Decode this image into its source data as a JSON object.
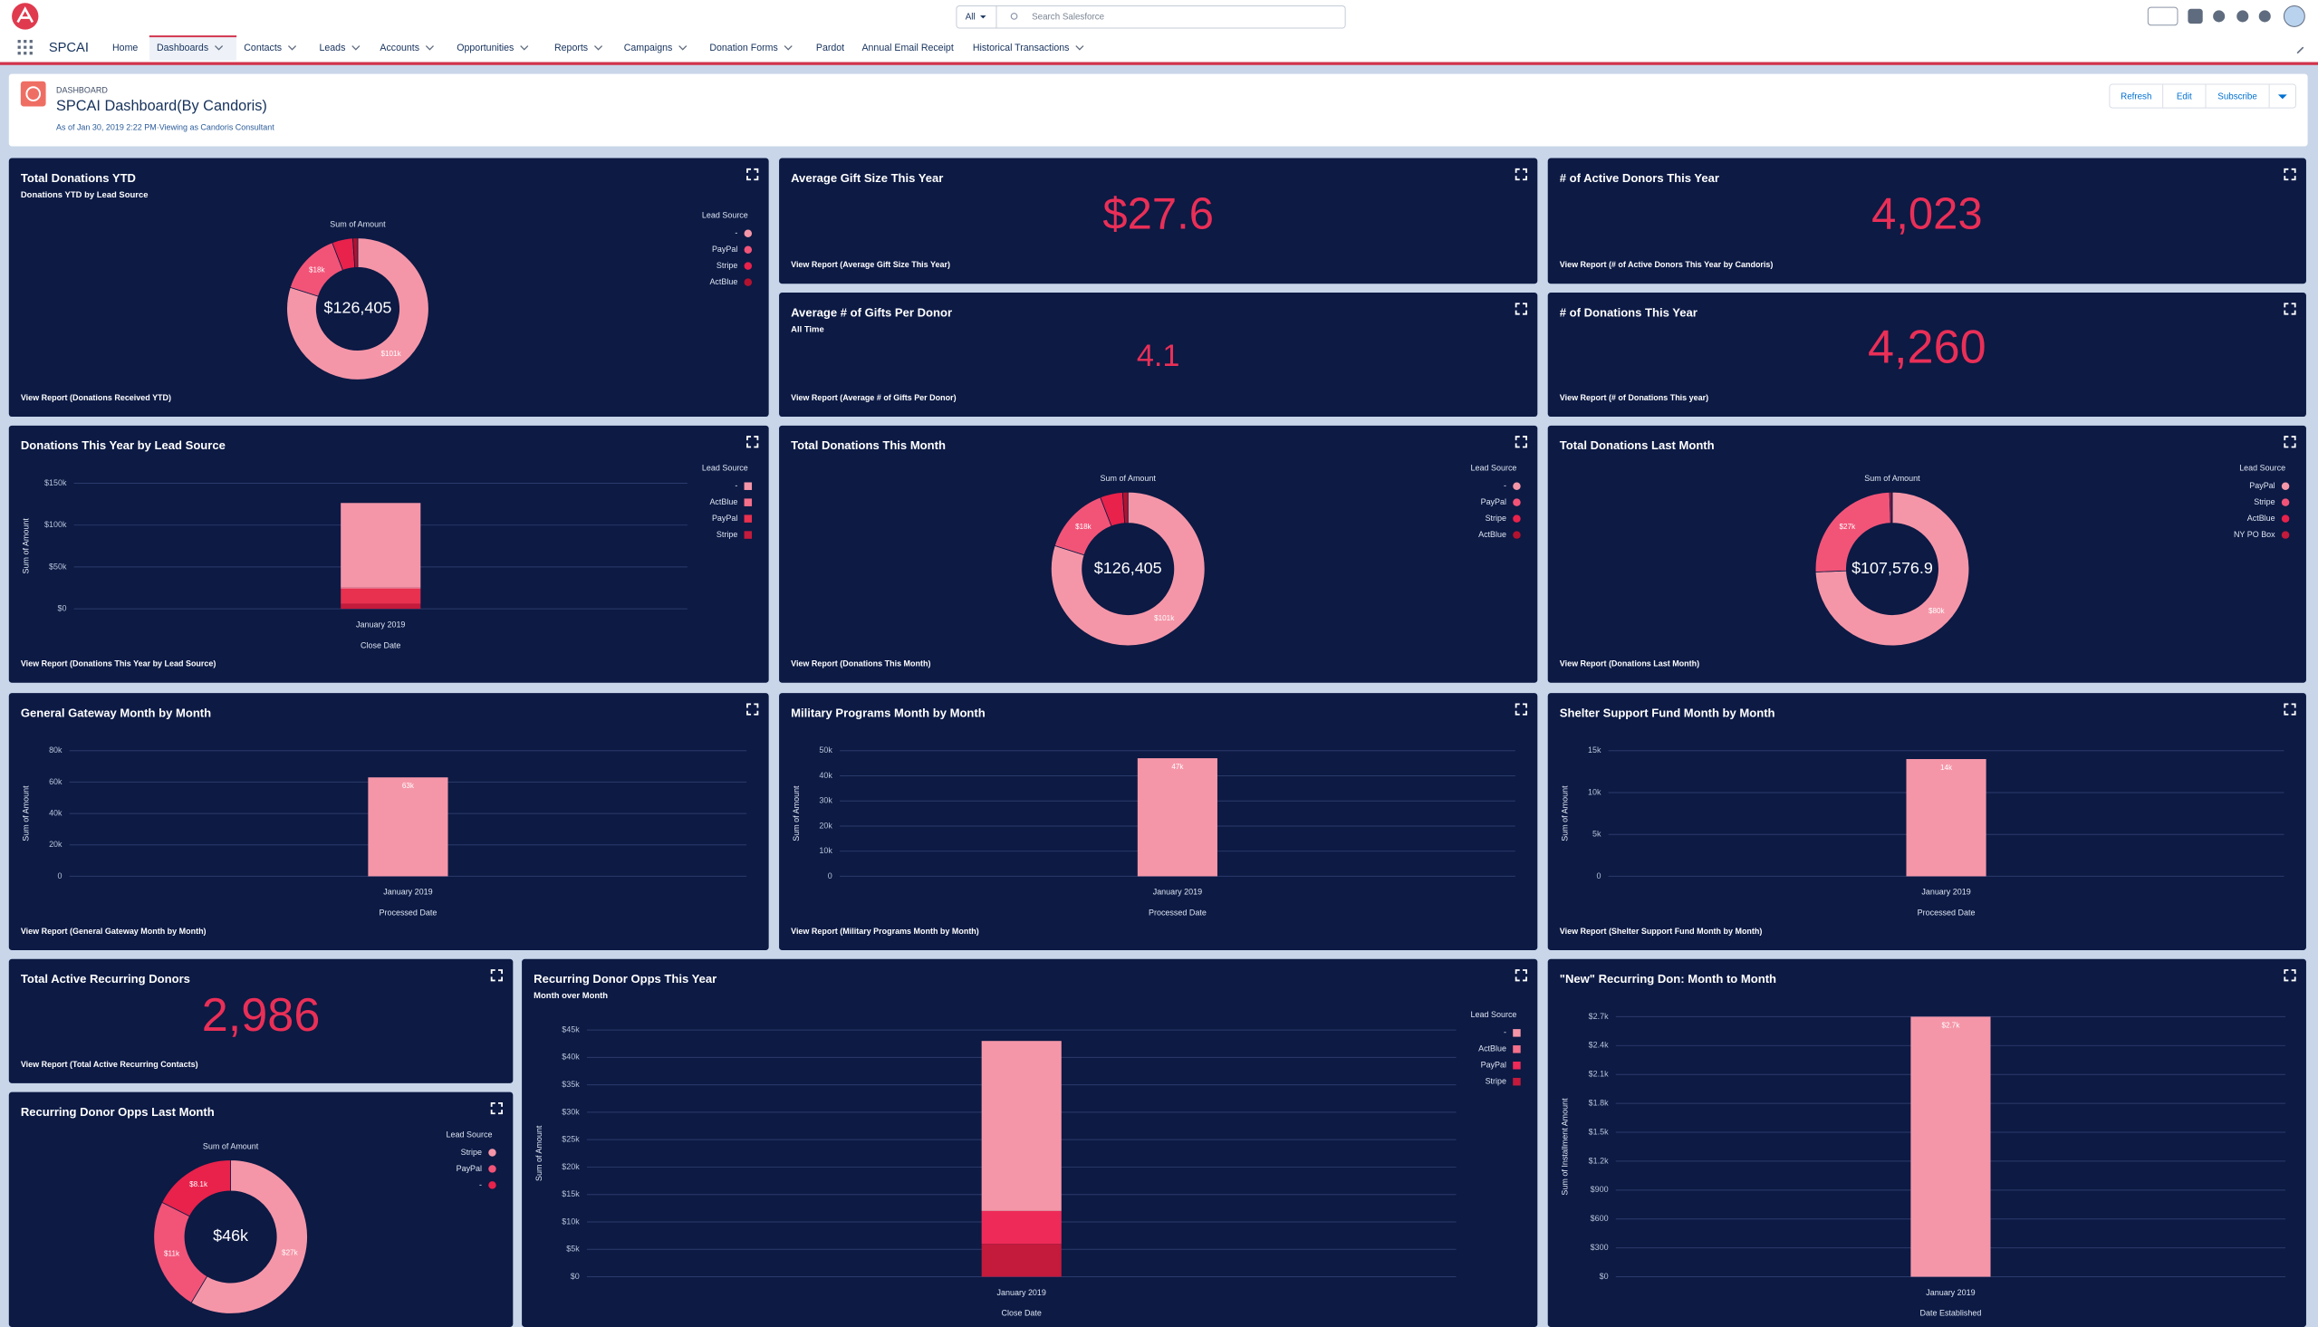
{
  "app": {
    "name": "SPCAI",
    "search_scope": "All",
    "search_placeholder": "Search Salesforce",
    "nav": [
      "Home",
      "Dashboards",
      "Contacts",
      "Leads",
      "Accounts",
      "Opportunities",
      "Reports",
      "Campaigns",
      "Donation Forms",
      "Pardot",
      "Annual Email Receipt",
      "Historical Transactions"
    ]
  },
  "dashboard": {
    "label": "DASHBOARD",
    "title": "SPCAI Dashboard(By Candoris)",
    "subtitle": "As of Jan 30, 2019 2:22 PM·Viewing as Candoris Consultant",
    "buttons": [
      "Refresh",
      "Edit",
      "Subscribe"
    ]
  },
  "chart_data": [
    {
      "type": "donut",
      "title": "Total Donations YTD",
      "subtitle": "Donations YTD by Lead Source",
      "center_caption": "Sum of Amount",
      "center_label": "$126,405",
      "legend_title": "Lead Source",
      "categories": [
        "-",
        "PayPal",
        "Stripe",
        "ActBlue"
      ],
      "values": [
        101000,
        18000,
        6000,
        1405
      ],
      "value_labels": [
        "$101k",
        "$18k",
        null,
        null
      ],
      "colors": [
        "#f596a8",
        "#f25478",
        "#e8224b",
        "#b3122f"
      ],
      "link": "View Report (Donations Received YTD)"
    },
    {
      "type": "metric",
      "title": "Average Gift Size This Year",
      "value": "$27.6",
      "link": "View Report (Average Gift Size This Year)"
    },
    {
      "type": "metric",
      "title": "# of Active Donors This Year",
      "value": "4,023",
      "link": "View Report (# of Active Donors This Year by Candoris)"
    },
    {
      "type": "metric",
      "title": "Average # of Gifts Per Donor",
      "subtitle": "All Time",
      "value": "4.1",
      "link": "View Report (Average # of Gifts Per Donor)"
    },
    {
      "type": "metric",
      "title": "# of Donations This Year",
      "value": "4,260",
      "link": "View Report (# of Donations This year)"
    },
    {
      "type": "bar",
      "title": "Donations This Year by Lead Source",
      "legend_title": "Lead Source",
      "categories": [
        "January 2019"
      ],
      "series": [
        {
          "name": "-",
          "color": "#f596a8",
          "values": [
            101000
          ]
        },
        {
          "name": "ActBlue",
          "color": "#f5708a",
          "values": [
            1405
          ]
        },
        {
          "name": "PayPal",
          "color": "#e8304f",
          "values": [
            18000
          ]
        },
        {
          "name": "Stripe",
          "color": "#c41a3b",
          "values": [
            6000
          ]
        }
      ],
      "ylim": [
        0,
        150000
      ],
      "yticks": [
        {
          "value": 0,
          "label": "$0"
        },
        {
          "value": 50000,
          "label": "$50k"
        },
        {
          "value": 100000,
          "label": "$100k"
        },
        {
          "value": 150000,
          "label": "$150k"
        }
      ],
      "ylabel": "Sum of Amount",
      "xlabel": "Close Date",
      "link": "View Report (Donations This Year by Lead Source)"
    },
    {
      "type": "donut",
      "title": "Total Donations This Month",
      "center_caption": "Sum of Amount",
      "center_label": "$126,405",
      "legend_title": "Lead Source",
      "categories": [
        "-",
        "PayPal",
        "Stripe",
        "ActBlue"
      ],
      "values": [
        101000,
        18000,
        6000,
        1405
      ],
      "value_labels": [
        "$101k",
        "$18k",
        null,
        null
      ],
      "colors": [
        "#f596a8",
        "#f25478",
        "#e8224b",
        "#b3122f"
      ],
      "link": "View Report (Donations This Month)"
    },
    {
      "type": "donut",
      "title": "Total Donations Last Month",
      "center_caption": "Sum of Amount",
      "center_label": "$107,576.9",
      "legend_title": "Lead Source",
      "categories": [
        "PayPal",
        "Stripe",
        "ActBlue",
        "NY PO Box"
      ],
      "values": [
        80000,
        27000,
        400,
        176.9
      ],
      "value_labels": [
        "$80k",
        "$27k",
        null,
        null
      ],
      "colors": [
        "#f596a8",
        "#f25478",
        "#e8224b",
        "#c41a3b"
      ],
      "link": "View Report (Donations Last Month)"
    },
    {
      "type": "bar",
      "title": "General Gateway Month by Month",
      "categories": [
        "January 2019"
      ],
      "series": [
        {
          "color": "#f596a8",
          "values": [
            63000
          ],
          "value_labels": [
            "63k"
          ]
        }
      ],
      "ylim": [
        0,
        80000
      ],
      "yticks": [
        0,
        {
          "value": 20000,
          "label": "20k"
        },
        {
          "value": 40000,
          "label": "40k"
        },
        {
          "value": 60000,
          "label": "60k"
        },
        {
          "value": 80000,
          "label": "80k"
        }
      ],
      "ylabel": "Sum of Amount",
      "xlabel": "Processed Date",
      "link": "View Report (General Gateway Month by Month)"
    },
    {
      "type": "bar",
      "title": "Military Programs Month by Month",
      "categories": [
        "January 2019"
      ],
      "series": [
        {
          "color": "#f596a8",
          "values": [
            47000
          ],
          "value_labels": [
            "47k"
          ]
        }
      ],
      "ylim": [
        0,
        50000
      ],
      "yticks": [
        0,
        {
          "value": 10000,
          "label": "10k"
        },
        {
          "value": 20000,
          "label": "20k"
        },
        {
          "value": 30000,
          "label": "30k"
        },
        {
          "value": 40000,
          "label": "40k"
        },
        {
          "value": 50000,
          "label": "50k"
        }
      ],
      "ylabel": "Sum of Amount",
      "xlabel": "Processed Date",
      "link": "View Report (Military Programs Month by Month)"
    },
    {
      "type": "bar",
      "title": "Shelter Support Fund Month by Month",
      "categories": [
        "January 2019"
      ],
      "series": [
        {
          "color": "#f596a8",
          "values": [
            14000
          ],
          "value_labels": [
            "14k"
          ]
        }
      ],
      "ylim": [
        0,
        15000
      ],
      "yticks": [
        0,
        {
          "value": 5000,
          "label": "5k"
        },
        {
          "value": 10000,
          "label": "10k"
        },
        {
          "value": 15000,
          "label": "15k"
        }
      ],
      "ylabel": "Sum of Amount",
      "xlabel": "Processed Date",
      "link": "View Report (Shelter Support Fund Month by Month)"
    },
    {
      "type": "metric",
      "title": "Total Active Recurring Donors",
      "value": "2,986",
      "link": "View Report (Total Active Recurring Contacts)"
    },
    {
      "type": "bar",
      "title": "Recurring Donor Opps This Year",
      "subtitle": "Month over Month",
      "legend_title": "Lead Source",
      "categories": [
        "January 2019"
      ],
      "series": [
        {
          "name": "-",
          "color": "#f596a8",
          "values": [
            31000
          ]
        },
        {
          "name": "ActBlue",
          "color": "#f5708a",
          "values": [
            0
          ]
        },
        {
          "name": "PayPal",
          "color": "#ee2a58",
          "values": [
            6000
          ]
        },
        {
          "name": "Stripe",
          "color": "#c41a3b",
          "values": [
            6000
          ]
        }
      ],
      "ylim": [
        0,
        45000
      ],
      "yticks": [
        {
          "value": 0,
          "label": "$0"
        },
        {
          "value": 5000,
          "label": "$5k"
        },
        {
          "value": 10000,
          "label": "$10k"
        },
        {
          "value": 15000,
          "label": "$15k"
        },
        {
          "value": 20000,
          "label": "$20k"
        },
        {
          "value": 25000,
          "label": "$25k"
        },
        {
          "value": 30000,
          "label": "$30k"
        },
        {
          "value": 35000,
          "label": "$35k"
        },
        {
          "value": 40000,
          "label": "$40k"
        },
        {
          "value": 45000,
          "label": "$45k"
        }
      ],
      "ylabel": "Sum of Amount",
      "xlabel": "Close Date"
    },
    {
      "type": "bar",
      "title": "\"New\" Recurring Don: Month to Month",
      "categories": [
        "January 2019"
      ],
      "series": [
        {
          "color": "#f596a8",
          "values": [
            2700
          ],
          "value_labels": [
            "$2.7k"
          ]
        }
      ],
      "ylim": [
        0,
        2700
      ],
      "yticks": [
        {
          "value": 0,
          "label": "$0"
        },
        {
          "value": 300,
          "label": "$300"
        },
        {
          "value": 600,
          "label": "$600"
        },
        {
          "value": 900,
          "label": "$900"
        },
        {
          "value": 1200,
          "label": "$1.2k"
        },
        {
          "value": 1500,
          "label": "$1.5k"
        },
        {
          "value": 1800,
          "label": "$1.8k"
        },
        {
          "value": 2100,
          "label": "$2.1k"
        },
        {
          "value": 2400,
          "label": "$2.4k"
        },
        {
          "value": 2700,
          "label": "$2.7k"
        }
      ],
      "ylabel": "Sum of Installment Amount",
      "xlabel": "Date Established"
    },
    {
      "type": "donut",
      "title": "Recurring Donor Opps Last Month",
      "center_caption": "Sum of Amount",
      "center_label": "$46k",
      "legend_title": "Lead Source",
      "categories": [
        "Stripe",
        "PayPal",
        "-"
      ],
      "values": [
        27000,
        11000,
        8100
      ],
      "value_labels": [
        "$27k",
        "$11k",
        "$8.1k"
      ],
      "colors": [
        "#f596a8",
        "#f25478",
        "#e8224b"
      ]
    }
  ]
}
